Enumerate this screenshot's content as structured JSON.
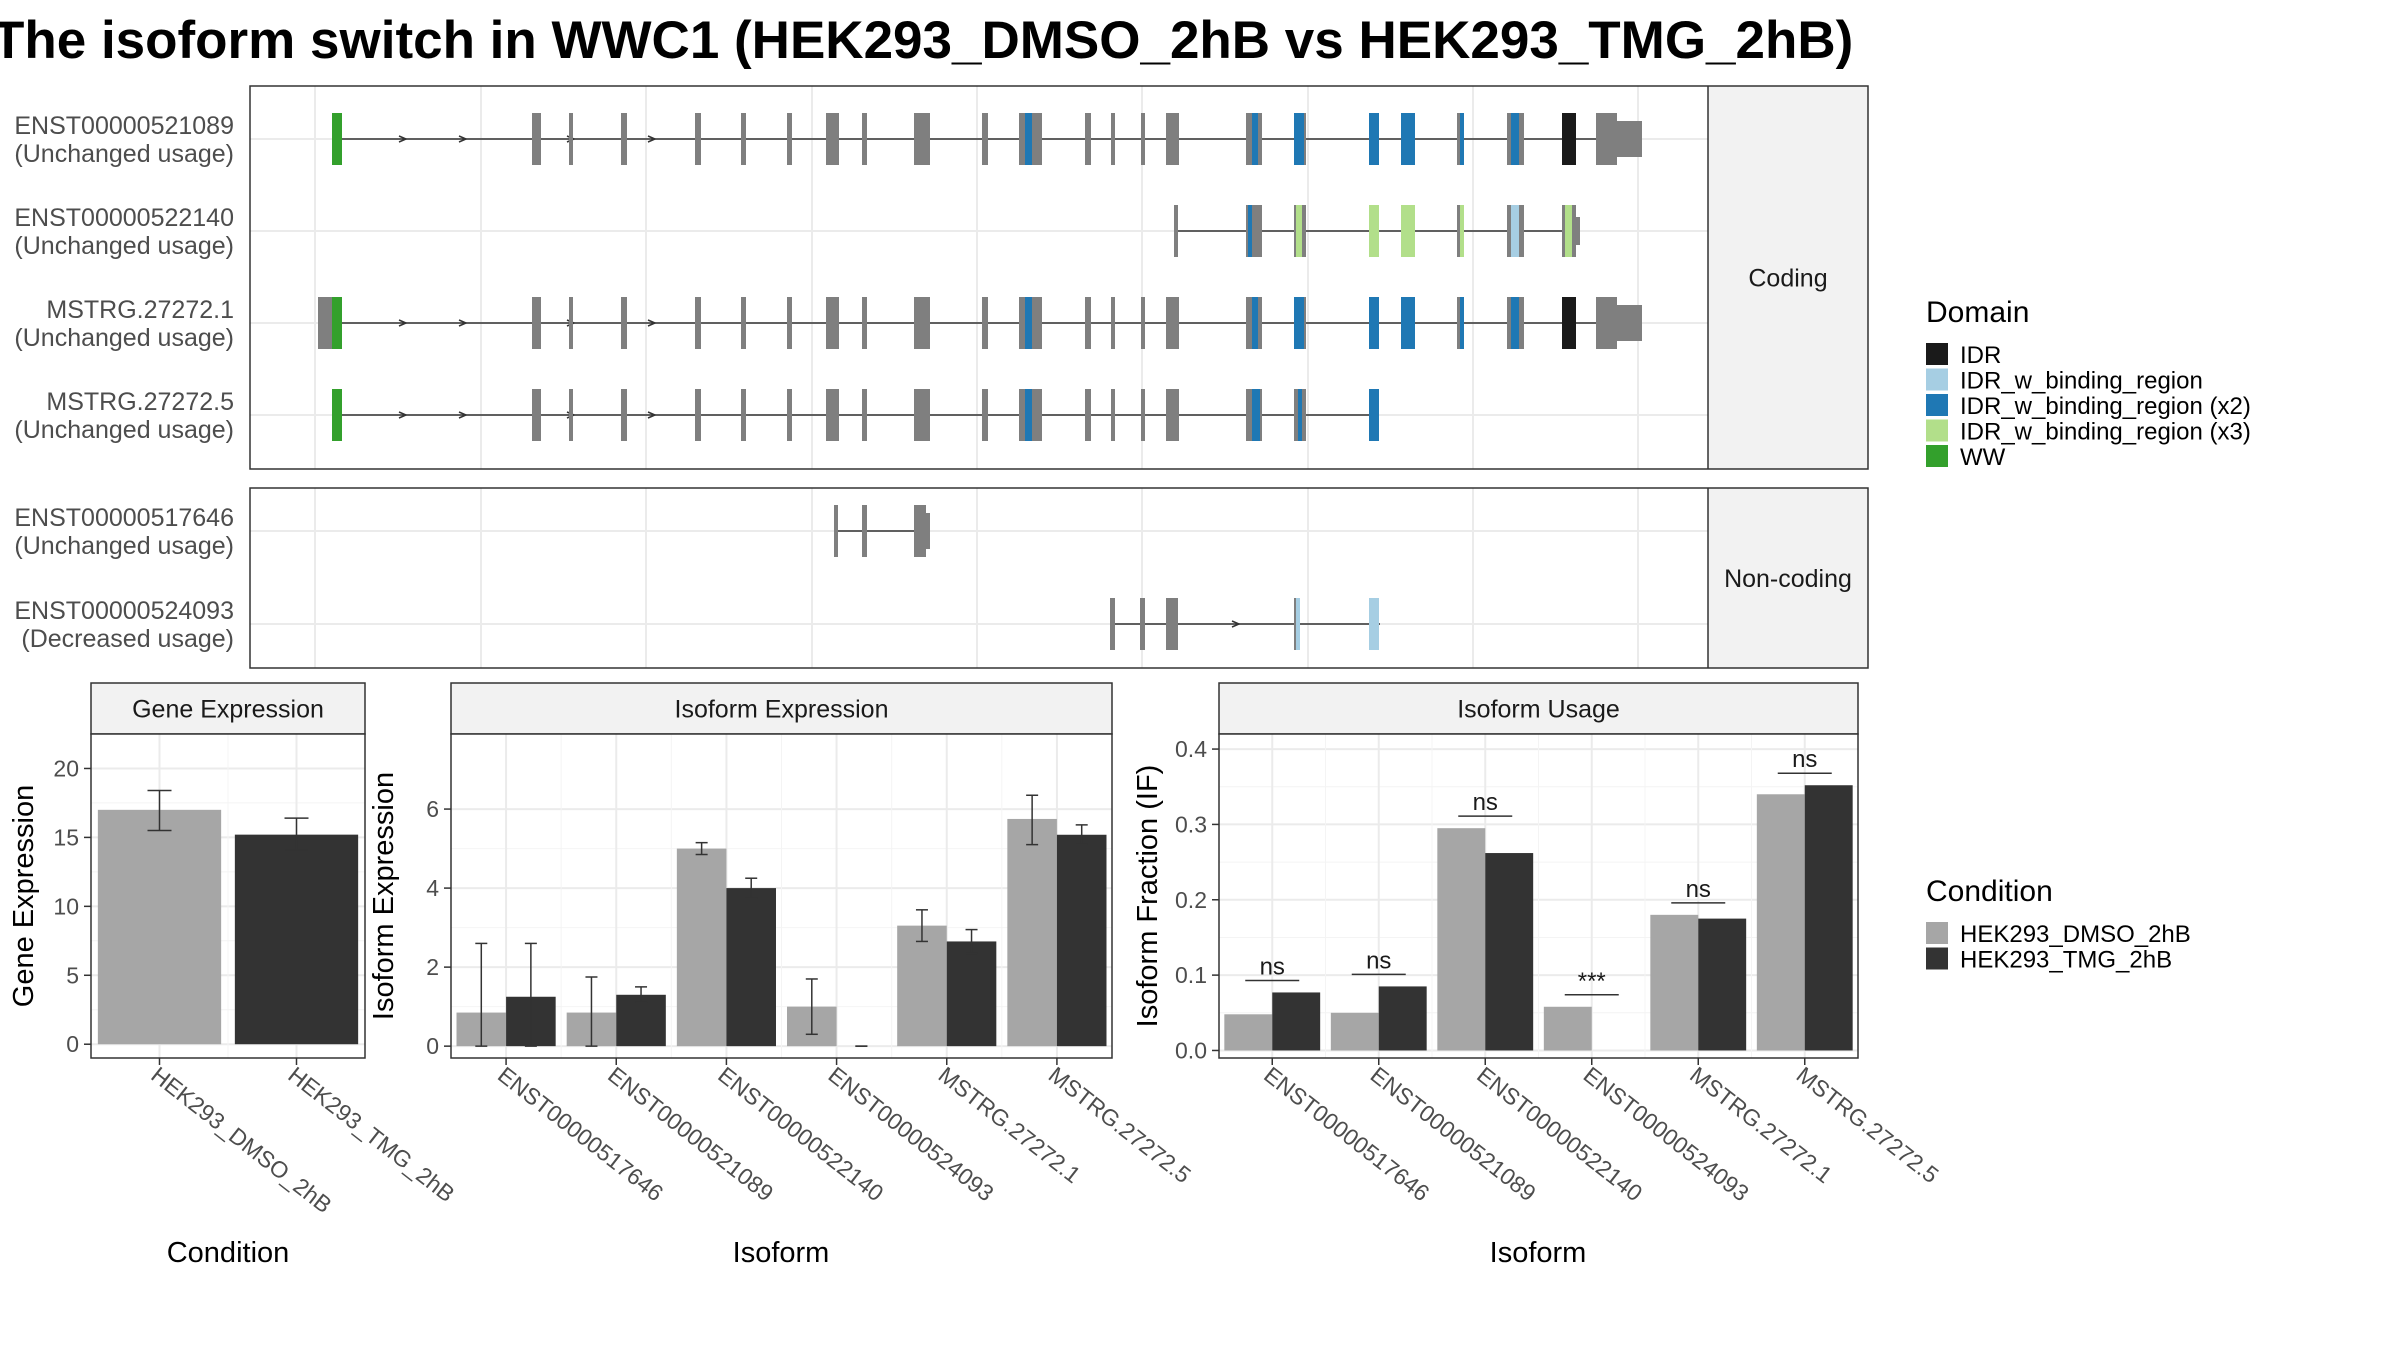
{
  "title": "The isoform switch in WWC1 (HEK293_DMSO_2hB vs HEK293_TMG_2hB)",
  "colors": {
    "exon": "#7f7f7f",
    "IDR": "#1a1a1a",
    "IDR_w_binding_region": "#a6cee3",
    "IDR_w_binding_region (x2)": "#1f78b4",
    "IDR_w_binding_region (x3)": "#b2df8a",
    "WW": "#33a02c",
    "dmso": "#a6a6a6",
    "tmg": "#333333",
    "frame": "#333333",
    "strip_fill": "#f2f2f2",
    "grid": "#ebebeb"
  },
  "structure": {
    "groups": [
      {
        "label": "Coding",
        "tracks": [
          {
            "id": "ENST00000521089",
            "usage": "(Unchanged usage)"
          },
          {
            "id": "ENST00000522140",
            "usage": "(Unchanged usage)"
          },
          {
            "id": "MSTRG.27272.1",
            "usage": "(Unchanged usage)"
          },
          {
            "id": "MSTRG.27272.5",
            "usage": "(Unchanged usage)"
          }
        ]
      },
      {
        "label": "Non-coding",
        "tracks": [
          {
            "id": "ENST00000517646",
            "usage": "(Unchanged usage)"
          },
          {
            "id": "ENST00000524093",
            "usage": "(Decreased usage)"
          }
        ]
      }
    ]
  },
  "legend_domain": {
    "title": "Domain",
    "items": [
      {
        "label": "IDR",
        "color_key": "IDR"
      },
      {
        "label": "IDR_w_binding_region",
        "color_key": "IDR_w_binding_region"
      },
      {
        "label": "IDR_w_binding_region (x2)",
        "color_key": "IDR_w_binding_region (x2)"
      },
      {
        "label": "IDR_w_binding_region (x3)",
        "color_key": "IDR_w_binding_region (x3)"
      },
      {
        "label": "WW",
        "color_key": "WW"
      }
    ]
  },
  "legend_condition": {
    "title": "Condition",
    "items": [
      {
        "label": "HEK293_DMSO_2hB",
        "color_key": "dmso"
      },
      {
        "label": "HEK293_TMG_2hB",
        "color_key": "tmg"
      }
    ]
  },
  "chart_data": [
    {
      "type": "bar",
      "title": "Gene Expression",
      "xlabel": "Condition",
      "ylabel": "Gene Expression",
      "ylim": [
        -1,
        22.5
      ],
      "yticks": [
        0,
        5,
        10,
        15,
        20
      ],
      "categories": [
        "HEK293_DMSO_2hB",
        "HEK293_TMG_2hB"
      ],
      "values": [
        17.0,
        15.2
      ],
      "errors": [
        [
          15.5,
          18.4
        ],
        [
          14.1,
          16.4
        ]
      ]
    },
    {
      "type": "bar",
      "title": "Isoform Expression",
      "xlabel": "Isoform",
      "ylabel": "Isoform Expression",
      "ylim": [
        -0.3,
        7.9
      ],
      "yticks": [
        0,
        2,
        4,
        6
      ],
      "categories": [
        "ENST00000517646",
        "ENST00000521089",
        "ENST00000522140",
        "ENST00000524093",
        "MSTRG.27272.1",
        "MSTRG.27272.5"
      ],
      "series": [
        {
          "name": "HEK293_DMSO_2hB",
          "values": [
            0.85,
            0.85,
            5.0,
            1.0,
            3.05,
            5.75
          ],
          "errors": [
            [
              0,
              2.6
            ],
            [
              0,
              1.75
            ],
            [
              4.85,
              5.15
            ],
            [
              0.3,
              1.7
            ],
            [
              2.65,
              3.45
            ],
            [
              5.1,
              6.35
            ]
          ]
        },
        {
          "name": "HEK293_TMG_2hB",
          "values": [
            1.25,
            1.3,
            4.0,
            0.0,
            2.65,
            5.35
          ],
          "errors": [
            [
              0,
              2.6
            ],
            [
              1.1,
              1.5
            ],
            [
              3.75,
              4.25
            ],
            [
              0,
              0
            ],
            [
              2.35,
              2.95
            ],
            [
              5.1,
              5.6
            ]
          ]
        }
      ]
    },
    {
      "type": "bar",
      "title": "Isoform Usage",
      "xlabel": "Isoform",
      "ylabel": "Isoform Fraction (IF)",
      "ylim": [
        -0.01,
        0.42
      ],
      "yticks": [
        0.0,
        0.1,
        0.2,
        0.3,
        0.4
      ],
      "ytick_labels": [
        "0.0",
        "0.1",
        "0.2",
        "0.3",
        "0.4"
      ],
      "categories": [
        "ENST00000517646",
        "ENST00000521089",
        "ENST00000522140",
        "ENST00000524093",
        "MSTRG.27272.1",
        "MSTRG.27272.5"
      ],
      "series": [
        {
          "name": "HEK293_DMSO_2hB",
          "values": [
            0.048,
            0.05,
            0.295,
            0.058,
            0.18,
            0.34
          ]
        },
        {
          "name": "HEK293_TMG_2hB",
          "values": [
            0.077,
            0.085,
            0.262,
            0.0,
            0.175,
            0.352
          ]
        }
      ],
      "significance": [
        "ns",
        "ns",
        "ns",
        "***",
        "ns",
        "ns"
      ]
    }
  ]
}
